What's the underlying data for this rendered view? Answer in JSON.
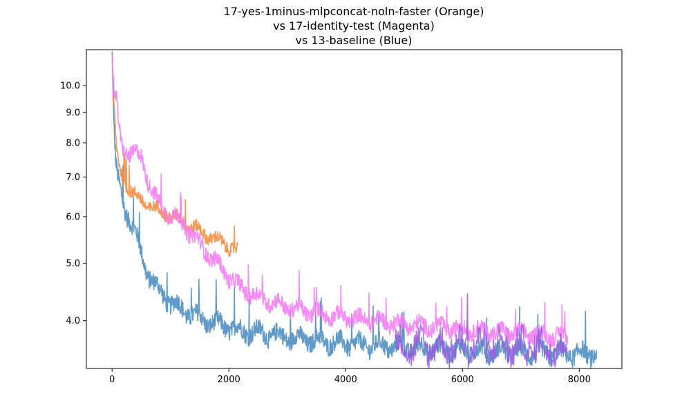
{
  "chart_data": {
    "type": "line",
    "title_lines": [
      "17-yes-1minus-mlpconcat-noln-faster (Orange)",
      "vs 17-identity-test (Magenta)",
      "vs 13-baseline (Blue)"
    ],
    "xlabel": "",
    "ylabel": "",
    "xlim": [
      -440,
      8730
    ],
    "ylim": [
      3.32,
      11.5
    ],
    "yscale": "log",
    "grid": false,
    "x_ticks": [
      {
        "value": 0,
        "label": "0"
      },
      {
        "value": 2000,
        "label": "2000"
      },
      {
        "value": 4000,
        "label": "4000"
      },
      {
        "value": 6000,
        "label": "6000"
      },
      {
        "value": 8000,
        "label": "8000"
      }
    ],
    "y_ticks": [
      {
        "value": 4.0,
        "label": "4.0"
      },
      {
        "value": 5.0,
        "label": "5.0"
      },
      {
        "value": 6.0,
        "label": "6.0"
      },
      {
        "value": 7.0,
        "label": "7.0"
      },
      {
        "value": 8.0,
        "label": "8.0"
      },
      {
        "value": 9.0,
        "label": "9.0"
      },
      {
        "value": 10.0,
        "label": "10.0"
      }
    ],
    "series": [
      {
        "color": "#4a8cc0",
        "x": [
          0,
          30,
          60,
          80,
          100,
          150,
          200,
          300,
          400,
          500,
          600,
          700,
          800,
          1000,
          1200,
          1400,
          1600,
          1800,
          2000,
          2200,
          2500,
          2800,
          3000,
          3500,
          4000,
          4500,
          5000,
          5500,
          6000,
          6500,
          7000,
          7500,
          7800,
          8000,
          8300
        ],
        "y": [
          11.3,
          8.5,
          7.4,
          7.1,
          6.9,
          6.6,
          6.3,
          5.95,
          5.6,
          5.2,
          4.85,
          4.65,
          4.5,
          4.3,
          4.18,
          4.08,
          4.0,
          3.95,
          3.9,
          3.85,
          3.82,
          3.78,
          3.75,
          3.7,
          3.66,
          3.63,
          3.61,
          3.59,
          3.57,
          3.55,
          3.54,
          3.53,
          3.52,
          3.52,
          3.52
        ]
      },
      {
        "color": "#f48c3c",
        "x": [
          0,
          30,
          60,
          80,
          100,
          150,
          200,
          300,
          400,
          500,
          600,
          700,
          800,
          900,
          1000,
          1200,
          1400,
          1600,
          1800,
          2000,
          2150
        ],
        "y": [
          11.3,
          9.3,
          8.2,
          7.7,
          7.45,
          7.1,
          6.95,
          6.7,
          6.5,
          6.38,
          6.3,
          6.22,
          6.15,
          6.08,
          6.02,
          5.9,
          5.75,
          5.6,
          5.48,
          5.35,
          5.25
        ]
      },
      {
        "color": "#f47cf4",
        "x": [
          0,
          30,
          60,
          80,
          100,
          150,
          200,
          300,
          400,
          500,
          550,
          600,
          700,
          800,
          1000,
          1200,
          1400,
          1600,
          1800,
          2000,
          2200,
          2500,
          3000,
          3500,
          4000,
          4500,
          5000,
          5500,
          6000,
          6500,
          7000,
          7500,
          7800
        ],
        "y": [
          11.3,
          9.8,
          9.5,
          9.3,
          8.8,
          8.0,
          7.8,
          7.72,
          7.65,
          7.55,
          7.3,
          7.0,
          6.6,
          6.3,
          6.05,
          5.85,
          5.55,
          5.25,
          5.0,
          4.75,
          4.55,
          4.38,
          4.22,
          4.12,
          4.05,
          4.0,
          3.95,
          3.91,
          3.87,
          3.84,
          3.81,
          3.78,
          3.75
        ]
      },
      {
        "color": "#9b59e0",
        "x": [
          4850,
          5200,
          5600,
          6000,
          6400,
          6800,
          7200,
          7500,
          7800
        ],
        "y": [
          3.62,
          3.62,
          3.62,
          3.62,
          3.63,
          3.62,
          3.61,
          3.6,
          3.58
        ]
      }
    ]
  }
}
